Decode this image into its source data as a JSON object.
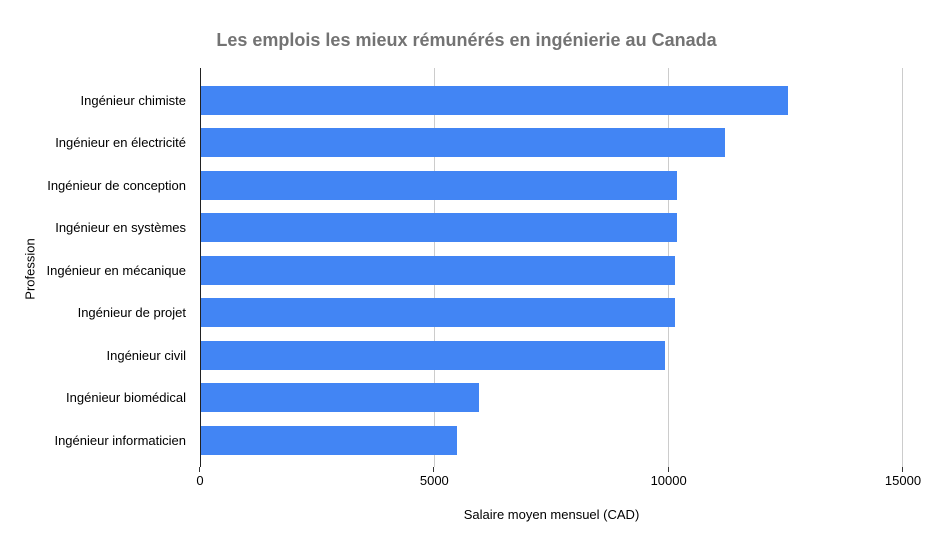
{
  "chart_data": {
    "type": "bar",
    "orientation": "horizontal",
    "title": "Les emplois les mieux rémunérés en ingénierie au Canada",
    "xlabel": "Salaire moyen mensuel (CAD)",
    "ylabel": "Profession",
    "categories": [
      "Ingénieur chimiste",
      "Ingénieur en électricité",
      "Ingénieur de conception",
      "Ingénieur en systèmes",
      "Ingénieur en mécanique",
      "Ingénieur de projet",
      "Ingénieur civil",
      "Ingénieur biomédical",
      "Ingénieur informaticien"
    ],
    "values": [
      12550,
      11200,
      10170,
      10170,
      10120,
      10120,
      9915,
      5950,
      5480
    ],
    "xlim": [
      0,
      15000
    ],
    "xticks": [
      {
        "label": "0",
        "value": 0
      },
      {
        "label": "5000",
        "value": 5000
      },
      {
        "label": "10000",
        "value": 10000
      },
      {
        "label": "15000",
        "value": 15000
      }
    ],
    "grid": "vertical",
    "legend": "none",
    "colors": {
      "bar": "#4285f4",
      "gridline": "#cccccc",
      "axis_line": "#222222",
      "tick_mark": "#333333",
      "title_text": "#737373",
      "label_text": "#000000"
    }
  }
}
